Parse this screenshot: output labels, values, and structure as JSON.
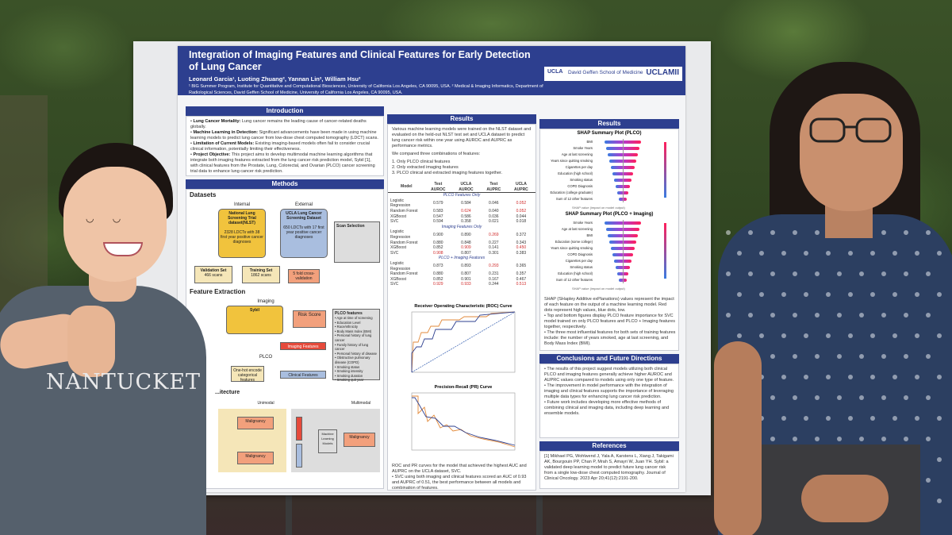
{
  "poster": {
    "title": "Integration of Imaging Features and Clinical Features for Early Detection of Lung Cancer",
    "authors": "Leonard Garcia¹, Luoting Zhuang², Yannan Lin², William Hsu²",
    "affiliations": "¹ BIG Summer Program, Institute for Quantitative and Computational Biosciences, University of California Los Angeles, CA 90095, USA. ² Medical & Imaging Informatics, Department of Radiological Sciences, David Geffen School of Medicine, University of California Los Angeles, CA 90095, USA.",
    "logo_ucla": "UCLA",
    "logo_dgsom": "David Geffen School of Medicine",
    "logo_mii": "UCLAMII",
    "introduction": {
      "heading": "Introduction",
      "items": [
        {
          "label": "Lung Cancer Mortality:",
          "text": "Lung cancer remains the leading cause of cancer-related deaths globally."
        },
        {
          "label": "Machine Learning in Detection:",
          "text": "Significant advancements have been made in using machine learning models to predict lung cancer from low-dose chest computed tomography (LDCT) scans."
        },
        {
          "label": "Limitation of Current Models:",
          "text": "Existing imaging-based models often fail to consider crucial clinical information, potentially limiting their effectiveness."
        },
        {
          "label": "Project Objective:",
          "text": "This project aims to develop multimodal machine learning algorithms that integrate both imaging features extracted from the lung cancer risk prediction model, Sybil [1], with clinical features from the Prostate, Lung, Colorectal, and Ovarian (PLCO) cancer screening trial data to enhance lung cancer risk prediction."
        }
      ]
    },
    "methods": {
      "heading": "Methods",
      "datasets_heading": "Datasets",
      "internal_label": "Internal",
      "external_label": "External",
      "nlst_box": "National Lung Screening Trial dataset(NLST)",
      "nlst_desc": "2328 LDCTs with 38 first year positive cancer diagnoses",
      "ucla_box": "UCLA Lung Cancer Screening Dataset",
      "ucla_desc": "650 LDCTs with 17 first year positive cancer diagnoses",
      "scan_selection": "Scan Selection",
      "validation_set": "Validation Set",
      "validation_count": "466 scans",
      "training_set": "Training Set",
      "training_count": "1862 scans",
      "cross_validation": "5 fold cross-validation",
      "feature_extraction_heading": "Feature Extraction",
      "imaging_label": "Imaging",
      "sybil_label": "Sybil",
      "risk_score": "Risk Score",
      "imaging_features": "Imaging Features",
      "plco_label": "PLCO",
      "one_hot": "One-hot encode categorical features",
      "clinical_features": "Clinical Features",
      "plco_features_title": "PLCO features",
      "plco_features": [
        "Age at time of screening",
        "Education Level",
        "Race/ethnicity",
        "Body Mass Index (BMI)",
        "Personal history of lung cancer",
        "Family history of lung cancer",
        "Personal history of disease",
        "Obstructive pulmonary disease (COPD)",
        "Smoking status",
        "Smoking intensity",
        "Smoking duration",
        "Smoking quit year"
      ],
      "architecture_heading": "...itecture",
      "unimodal_label": "Unimodal",
      "multimodal_label": "Multimodal",
      "malignancy_label": "Malignancy",
      "ml_models_label": "Machine Learning Models"
    },
    "results_mid": {
      "heading": "Results",
      "paragraph": "Various machine learning models were trained on the NLST dataset and evaluated on the held-out NLST test set and UCLA dataset to predict lung cancer risk within one year using AUROC and AUPRC as performance metrics.",
      "combos_intro": "We compared three combinations of features:",
      "combos": [
        "Only PLCO clinical features",
        "Only extracted imaging features",
        "PLCO clinical and extracted imaging features together."
      ],
      "table": {
        "headers": [
          "Model",
          "Test AUROC",
          "UCLA AUROC",
          "Test AUPRC",
          "UCLA AUPRC"
        ],
        "groups": [
          {
            "name": "PLCO Features Only",
            "rows": [
              [
                "Logistic Regression",
                "0.579",
                "0.584",
                "0.046",
                "0.052"
              ],
              [
                "Random Forest",
                "0.583",
                "0.624",
                "0.040",
                "0.052"
              ],
              [
                "XGBoost",
                "0.547",
                "0.586",
                "0.036",
                "0.044"
              ],
              [
                "SVC",
                "0.594",
                "0.358",
                "0.021",
                "0.018"
              ]
            ]
          },
          {
            "name": "Imaging Features Only",
            "rows": [
              [
                "Logistic Regression",
                "0.900",
                "0.890",
                "0.269",
                "0.372"
              ],
              [
                "Random Forest",
                "0.880",
                "0.848",
                "0.227",
                "0.343"
              ],
              [
                "XGBoost",
                "0.852",
                "0.909",
                "0.141",
                "0.450"
              ],
              [
                "SVC",
                "0.908",
                "0.807",
                "0.301",
                "0.383"
              ]
            ]
          },
          {
            "name": "PLCO + Imaging Features",
            "rows": [
              [
                "Logistic Regression",
                "0.873",
                "0.893",
                "0.293",
                "0.365"
              ],
              [
                "Random Forest",
                "0.880",
                "0.807",
                "0.231",
                "0.357"
              ],
              [
                "XGBoost",
                "0.852",
                "0.901",
                "0.167",
                "0.467"
              ],
              [
                "SVC",
                "0.929",
                "0.933",
                "0.244",
                "0.513"
              ]
            ]
          }
        ]
      },
      "roc_title": "Receiver Operating Characteristic (ROC) Curve",
      "pr_title": "Precision-Recall (PR) Curve",
      "caption": "ROC and PR curves for the model that achieved the highest AUC and AUPRC on the UCLA dataset, SVC.",
      "bullet": "SVC using both imaging and clinical features scored an AUC of 0.93 and AUPRC of 0.51, the best performance between all models and combination of features."
    },
    "results_right": {
      "heading": "Results",
      "shap1_title": "SHAP Summary Plot (PLCO)",
      "shap1_features": [
        "BMI",
        "Smoke Years",
        "Age at last screening",
        "Years since quitting smoking",
        "Cigarettes per day",
        "Education (high school)",
        "Smoking status",
        "COPD Diagnosis",
        "Education (college graduate)",
        "Sum of 12 other features"
      ],
      "shap2_title": "SHAP Summary Plot (PLCO + Imaging)",
      "shap2_features": [
        "Smoke Years",
        "Age at last screening",
        "BMI",
        "Education (some college)",
        "Years since quitting smoking",
        "COPD Diagnosis",
        "Cigarettes per day",
        "Smoking status",
        "Education (high school)",
        "Sum of 12 other features"
      ],
      "shap_xlabel": "SHAP value (impact on model output)",
      "shap_desc": "SHAP (SHapley Additive exPlanations) values represent the impact of each feature on the output of a machine learning model. Red dots represent high values, blue dots, low.",
      "shap_bullets": [
        "Top and bottom figures display PLCO feature importance for SVC model trained on only PLCO features and PLCO + Imaging features together, respectively.",
        "The three most influential features for both sets of training features include: the number of years smoked, age at last screening, and Body Mass Index (BMI)."
      ]
    },
    "conclusions": {
      "heading": "Conclusions and Future Directions",
      "items": [
        "The results of this project suggest models utilizing both clinical PLCO and imaging features generally achieve higher AUROC and AUPRC values compared to models using only one type of feature.",
        "The improvement in model performance with the integration of imaging and clinical features supports the importance of leveraging multiple data types for enhancing lung cancer risk prediction.",
        "Future work includes developing more effective methods of combining clinical and imaging data, including deep learning and ensemble models."
      ]
    },
    "references": {
      "heading": "References",
      "text": "[1] Mikhael PG, Wohlwend J, Yala A, Karstens L, Xiang J, Takigami AK, Bourgouin PP, Chan P, Mrah S, Amayri W, Juan YH. Sybil: a validated deep learning model to predict future lung cancer risk from a single low-dose chest computed tomography. Journal of Clinical Oncology. 2023 Apr 20;41(12):2191-200."
    }
  },
  "shirt_text": "NANTUCKET",
  "colors": {
    "banner": "#2d3f8f",
    "yellow_box": "#f1c33d",
    "red_box": "#e64a3b",
    "blue_box": "#a9bedf"
  }
}
